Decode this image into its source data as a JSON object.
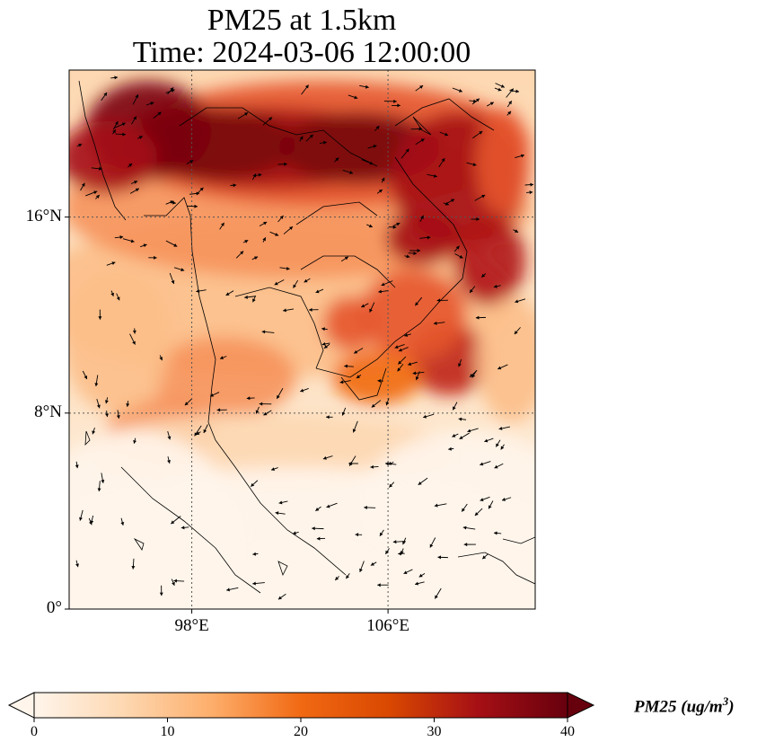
{
  "title_line1": "PM25 at 1.5km",
  "title_line2": "Time: 2024-03-06 12:00:00",
  "lat_ticks": [
    {
      "label": "16°N",
      "value": 16
    },
    {
      "label": "8°N",
      "value": 8
    },
    {
      "label": "0°",
      "value": 0
    }
  ],
  "lon_ticks": [
    {
      "label": "98°E",
      "value": 98
    },
    {
      "label": "106°E",
      "value": 106
    }
  ],
  "extent": {
    "lon_min": 93,
    "lon_max": 112,
    "lat_min": 0,
    "lat_max": 22
  },
  "colorbar": {
    "label_prefix": "PM25 (ug/m",
    "label_sup": "3",
    "label_suffix": ")",
    "min": 0,
    "max": 40,
    "ticks": [
      0,
      10,
      20,
      30,
      40
    ],
    "colors": [
      "#fff5eb",
      "#fdd8b2",
      "#fdae6b",
      "#f16913",
      "#d94801",
      "#a50f15",
      "#67000d"
    ]
  }
}
